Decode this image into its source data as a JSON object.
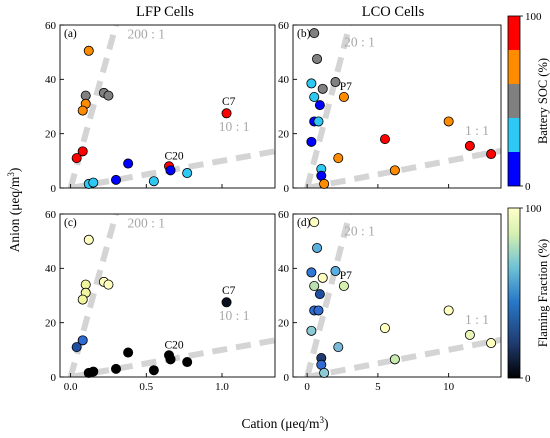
{
  "figure": {
    "column_titles": [
      "LFP Cells",
      "LCO Cells"
    ],
    "shared_xlabel": "Cation (μeq/m",
    "shared_xlabel_sup": "3",
    "shared_xlabel_close": ")",
    "shared_ylabel": "Anion (μeq/m",
    "shared_ylabel_sup": "3",
    "shared_ylabel_close": ")"
  },
  "colorbars": [
    {
      "label": "Battery SOC (%)",
      "ticks": [
        "0",
        "100"
      ],
      "type": "discrete",
      "colors": [
        "#0000ff",
        "#2ec8f5",
        "#808080",
        "#ff8c00",
        "#ff0000"
      ]
    },
    {
      "label": "Flaming Fraction (%)",
      "ticks": [
        "0",
        "100"
      ],
      "type": "continuous",
      "colors": [
        "#000000",
        "#1f3a6e",
        "#2878c8",
        "#6ec2d6",
        "#d6f0b0",
        "#ffffc8"
      ]
    }
  ],
  "chart_data": [
    {
      "type": "scatter",
      "panel_label": "(a)",
      "xlim": [
        -0.07,
        1.35
      ],
      "ylim": [
        0,
        60
      ],
      "xticks": [
        0.0,
        0.5,
        1.0
      ],
      "xtick_labels": [
        "0.0",
        "0.5",
        "1.0"
      ],
      "show_xtick_labels": false,
      "yticks": [
        0,
        20,
        40,
        60
      ],
      "ytick_labels": [
        "0",
        "20",
        "40",
        "60"
      ],
      "ratio_lines": [
        {
          "label": "200 : 1",
          "x": [
            0,
            0.3
          ],
          "y": [
            0,
            60
          ],
          "label_at": [
            0.5,
            55
          ]
        },
        {
          "label": "10 : 1",
          "x": [
            0,
            1.35
          ],
          "y": [
            0,
            13.5
          ],
          "label_at": [
            1.08,
            21
          ]
        }
      ],
      "annotations": [
        {
          "text": "C7",
          "at": [
            1.0,
            30.5
          ]
        },
        {
          "text": "C20",
          "at": [
            0.62,
            10.5
          ]
        }
      ],
      "points": [
        {
          "x": 0.12,
          "y": 50.5,
          "color": "#ff8c00"
        },
        {
          "x": 0.1,
          "y": 34,
          "color": "#808080"
        },
        {
          "x": 0.22,
          "y": 35,
          "color": "#808080"
        },
        {
          "x": 0.25,
          "y": 34,
          "color": "#808080"
        },
        {
          "x": 0.1,
          "y": 31,
          "color": "#ff8c00"
        },
        {
          "x": 0.08,
          "y": 28.5,
          "color": "#ff8c00"
        },
        {
          "x": 0.08,
          "y": 13.5,
          "color": "#ff0000"
        },
        {
          "x": 0.04,
          "y": 11,
          "color": "#ff0000"
        },
        {
          "x": 1.03,
          "y": 27.5,
          "color": "#ff0000"
        },
        {
          "x": 0.65,
          "y": 8,
          "color": "#ff0000"
        },
        {
          "x": 0.38,
          "y": 9,
          "color": "#0000ff"
        },
        {
          "x": 0.66,
          "y": 6.5,
          "color": "#0000ff"
        },
        {
          "x": 0.77,
          "y": 5.5,
          "color": "#2ec8f5"
        },
        {
          "x": 0.55,
          "y": 2.5,
          "color": "#2ec8f5"
        },
        {
          "x": 0.3,
          "y": 3,
          "color": "#0000ff"
        },
        {
          "x": 0.12,
          "y": 1.5,
          "color": "#2ec8f5"
        },
        {
          "x": 0.15,
          "y": 2,
          "color": "#2ec8f5"
        }
      ]
    },
    {
      "type": "scatter",
      "panel_label": "(b)",
      "xlim": [
        -1,
        13.7
      ],
      "ylim": [
        0,
        60
      ],
      "xticks": [
        0,
        5,
        10
      ],
      "xtick_labels": [
        "0",
        "5",
        "10"
      ],
      "show_xtick_labels": false,
      "yticks": [
        0,
        20,
        40,
        60
      ],
      "ytick_labels": [
        "0",
        "20",
        "40",
        "60"
      ],
      "ratio_lines": [
        {
          "label": "20 : 1",
          "x": [
            0,
            3.0
          ],
          "y": [
            0,
            60
          ],
          "label_at": [
            3.7,
            52
          ]
        },
        {
          "label": "1 : 1",
          "x": [
            0,
            13.7
          ],
          "y": [
            0,
            13.7
          ],
          "label_at": [
            12.0,
            19.5
          ]
        }
      ],
      "annotations": [
        {
          "text": "P7",
          "at": [
            2.3,
            36
          ]
        }
      ],
      "points": [
        {
          "x": 0.5,
          "y": 57,
          "color": "#808080"
        },
        {
          "x": 0.7,
          "y": 47.5,
          "color": "#808080"
        },
        {
          "x": 0.3,
          "y": 38.5,
          "color": "#2ec8f5"
        },
        {
          "x": 1.1,
          "y": 36.5,
          "color": "#808080"
        },
        {
          "x": 2.0,
          "y": 39,
          "color": "#808080"
        },
        {
          "x": 2.6,
          "y": 33.5,
          "color": "#ff8c00"
        },
        {
          "x": 0.5,
          "y": 33.5,
          "color": "#2ec8f5"
        },
        {
          "x": 0.9,
          "y": 30.5,
          "color": "#0000ff"
        },
        {
          "x": 0.5,
          "y": 24.5,
          "color": "#0000ff"
        },
        {
          "x": 0.8,
          "y": 24.5,
          "color": "#2ec8f5"
        },
        {
          "x": 0.3,
          "y": 17,
          "color": "#0000ff"
        },
        {
          "x": 5.5,
          "y": 18,
          "color": "#ff0000"
        },
        {
          "x": 10.0,
          "y": 24.5,
          "color": "#ff8c00"
        },
        {
          "x": 11.5,
          "y": 15.5,
          "color": "#ff0000"
        },
        {
          "x": 13.0,
          "y": 12.5,
          "color": "#ff0000"
        },
        {
          "x": 2.2,
          "y": 11,
          "color": "#ff8c00"
        },
        {
          "x": 6.2,
          "y": 6.5,
          "color": "#ff8c00"
        },
        {
          "x": 1.0,
          "y": 7,
          "color": "#2ec8f5"
        },
        {
          "x": 1.0,
          "y": 4.5,
          "color": "#0000ff"
        },
        {
          "x": 1.2,
          "y": 1.5,
          "color": "#ff8c00"
        }
      ]
    },
    {
      "type": "scatter",
      "panel_label": "(c)",
      "xlim": [
        -0.07,
        1.35
      ],
      "ylim": [
        0,
        60
      ],
      "xticks": [
        0.0,
        0.5,
        1.0
      ],
      "xtick_labels": [
        "0.0",
        "0.5",
        "1.0"
      ],
      "show_xtick_labels": true,
      "yticks": [
        0,
        20,
        40,
        60
      ],
      "ytick_labels": [
        "0",
        "20",
        "40",
        "60"
      ],
      "ratio_lines": [
        {
          "label": "200 : 1",
          "x": [
            0,
            0.3
          ],
          "y": [
            0,
            60
          ],
          "label_at": [
            0.5,
            55
          ]
        },
        {
          "label": "10 : 1",
          "x": [
            0,
            1.35
          ],
          "y": [
            0,
            13.5
          ],
          "label_at": [
            1.08,
            21
          ]
        }
      ],
      "annotations": [
        {
          "text": "C7",
          "at": [
            1.0,
            30.5
          ]
        },
        {
          "text": "C20",
          "at": [
            0.62,
            10.5
          ]
        }
      ],
      "points": [
        {
          "x": 0.12,
          "y": 50.5,
          "color": "#ffffc0"
        },
        {
          "x": 0.1,
          "y": 34,
          "color": "#f2f5a0"
        },
        {
          "x": 0.22,
          "y": 35,
          "color": "#ffffc0"
        },
        {
          "x": 0.25,
          "y": 34,
          "color": "#ffffc0"
        },
        {
          "x": 0.1,
          "y": 31,
          "color": "#f2f5a0"
        },
        {
          "x": 0.08,
          "y": 28.5,
          "color": "#f2f5a0"
        },
        {
          "x": 0.08,
          "y": 13.5,
          "color": "#2f6bd0"
        },
        {
          "x": 0.04,
          "y": 11,
          "color": "#1f4fa0"
        },
        {
          "x": 1.03,
          "y": 27.5,
          "color": "#0a0f1e"
        },
        {
          "x": 0.65,
          "y": 8,
          "color": "#000000"
        },
        {
          "x": 0.38,
          "y": 9,
          "color": "#000000"
        },
        {
          "x": 0.66,
          "y": 6.5,
          "color": "#000000"
        },
        {
          "x": 0.77,
          "y": 5.5,
          "color": "#000000"
        },
        {
          "x": 0.55,
          "y": 2.5,
          "color": "#000000"
        },
        {
          "x": 0.3,
          "y": 3,
          "color": "#000000"
        },
        {
          "x": 0.12,
          "y": 1.5,
          "color": "#000000"
        },
        {
          "x": 0.15,
          "y": 2,
          "color": "#000000"
        }
      ]
    },
    {
      "type": "scatter",
      "panel_label": "(d)",
      "xlim": [
        -1,
        13.7
      ],
      "ylim": [
        0,
        60
      ],
      "xticks": [
        0,
        5,
        10
      ],
      "xtick_labels": [
        "0",
        "5",
        "10"
      ],
      "show_xtick_labels": true,
      "yticks": [
        0,
        20,
        40,
        60
      ],
      "ytick_labels": [
        "0",
        "20",
        "40",
        "60"
      ],
      "ratio_lines": [
        {
          "label": "20 : 1",
          "x": [
            0,
            3.0
          ],
          "y": [
            0,
            60
          ],
          "label_at": [
            3.7,
            52
          ]
        },
        {
          "label": "1 : 1",
          "x": [
            0,
            13.7
          ],
          "y": [
            0,
            13.7
          ],
          "label_at": [
            12.0,
            19.5
          ]
        }
      ],
      "annotations": [
        {
          "text": "P7",
          "at": [
            2.3,
            36
          ]
        }
      ],
      "points": [
        {
          "x": 0.5,
          "y": 57,
          "color": "#ffffc0"
        },
        {
          "x": 0.7,
          "y": 47.5,
          "color": "#5aaee0"
        },
        {
          "x": 0.3,
          "y": 38.5,
          "color": "#2f78d8"
        },
        {
          "x": 1.1,
          "y": 36.5,
          "color": "#ffffc0"
        },
        {
          "x": 2.0,
          "y": 39,
          "color": "#5aaee0"
        },
        {
          "x": 2.6,
          "y": 33.5,
          "color": "#d6f0b0"
        },
        {
          "x": 0.5,
          "y": 33.5,
          "color": "#b8e0b0"
        },
        {
          "x": 0.9,
          "y": 30.5,
          "color": "#1f4fa0"
        },
        {
          "x": 0.5,
          "y": 24.5,
          "color": "#2f6bd0"
        },
        {
          "x": 0.8,
          "y": 24.5,
          "color": "#2f6bd0"
        },
        {
          "x": 0.3,
          "y": 17,
          "color": "#8ccbd6"
        },
        {
          "x": 5.5,
          "y": 18,
          "color": "#ffffc0"
        },
        {
          "x": 10.0,
          "y": 24.5,
          "color": "#ffffc0"
        },
        {
          "x": 11.5,
          "y": 15.5,
          "color": "#e8f5b8"
        },
        {
          "x": 13.0,
          "y": 12.5,
          "color": "#ffffc0"
        },
        {
          "x": 2.2,
          "y": 11,
          "color": "#7ab8d8"
        },
        {
          "x": 6.2,
          "y": 6.5,
          "color": "#c8ecb0"
        },
        {
          "x": 1.0,
          "y": 7,
          "color": "#1f3a6e"
        },
        {
          "x": 1.0,
          "y": 4.5,
          "color": "#2f6bd0"
        },
        {
          "x": 1.2,
          "y": 1.5,
          "color": "#8ccbd6"
        }
      ]
    }
  ]
}
